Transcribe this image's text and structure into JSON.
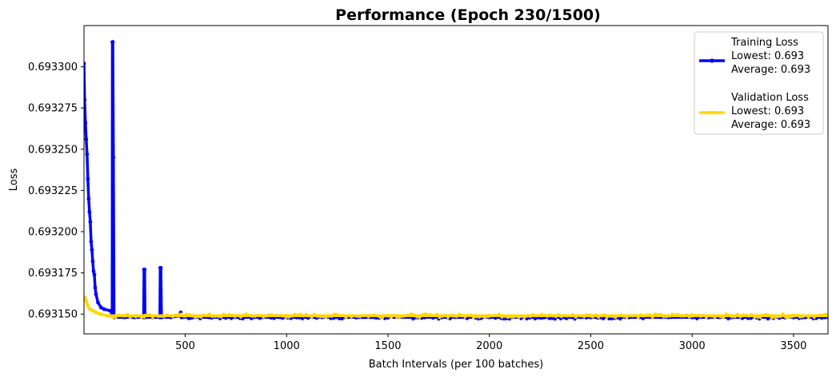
{
  "chart_data": {
    "type": "line",
    "title": "Performance (Epoch 230/1500)",
    "xlabel": "Batch Intervals (per 100 batches)",
    "ylabel": "Loss",
    "xlim": [
      1,
      3670
    ],
    "ylim": [
      0.693138,
      0.693325
    ],
    "xticks": [
      500,
      1000,
      1500,
      2000,
      2500,
      3000,
      3500
    ],
    "xtick_labels": [
      "500",
      "1000",
      "1500",
      "2000",
      "2500",
      "3000",
      "3500"
    ],
    "yticks": [
      0.69315,
      0.693175,
      0.6932,
      0.693225,
      0.69325,
      0.693275,
      0.6933
    ],
    "ytick_labels": [
      "0.693150",
      "0.693175",
      "0.693200",
      "0.693225",
      "0.693250",
      "0.693275",
      "0.693300"
    ],
    "grid": false,
    "legend_position": "top-right",
    "series": [
      {
        "name": "Training Loss",
        "color": "#0000ff",
        "legend_lines": [
          "Training Loss",
          "Lowest: 0.693",
          "Average: 0.693"
        ],
        "points": [
          [
            1,
            0.693302
          ],
          [
            4,
            0.69328
          ],
          [
            8,
            0.693266
          ],
          [
            12,
            0.693256
          ],
          [
            16,
            0.693247
          ],
          [
            20,
            0.693232
          ],
          [
            24,
            0.69322
          ],
          [
            28,
            0.693212
          ],
          [
            32,
            0.693206
          ],
          [
            36,
            0.693194
          ],
          [
            40,
            0.693189
          ],
          [
            44,
            0.693182
          ],
          [
            48,
            0.693176
          ],
          [
            52,
            0.693174
          ],
          [
            56,
            0.693166
          ],
          [
            60,
            0.693162
          ],
          [
            70,
            0.693157
          ],
          [
            85,
            0.693154
          ],
          [
            100,
            0.693153
          ],
          [
            130,
            0.693152
          ],
          [
            140,
            0.69315
          ],
          [
            141,
            0.693315
          ],
          [
            143,
            0.693315
          ],
          [
            146,
            0.693245
          ],
          [
            149,
            0.693148
          ],
          [
            200,
            0.693148
          ],
          [
            250,
            0.693148
          ],
          [
            295,
            0.693148
          ],
          [
            297,
            0.693177
          ],
          [
            300,
            0.693177
          ],
          [
            302,
            0.693148
          ],
          [
            340,
            0.693148
          ],
          [
            375,
            0.693148
          ],
          [
            377,
            0.693178
          ],
          [
            380,
            0.693178
          ],
          [
            383,
            0.693148
          ],
          [
            430,
            0.693148
          ],
          [
            475,
            0.693149
          ],
          [
            478,
            0.693151
          ],
          [
            482,
            0.693148
          ],
          [
            700,
            0.693148
          ],
          [
            1000,
            0.693148
          ],
          [
            1500,
            0.693148
          ],
          [
            2000,
            0.693148
          ],
          [
            2500,
            0.693148
          ],
          [
            3000,
            0.693148
          ],
          [
            3500,
            0.693148
          ],
          [
            3670,
            0.693148
          ]
        ]
      },
      {
        "name": "Validation Loss",
        "color": "#ffd700",
        "legend_lines": [
          "Validation Loss",
          "Lowest: 0.693",
          "Average: 0.693"
        ],
        "points": [
          [
            6,
            0.69316
          ],
          [
            12,
            0.693158
          ],
          [
            20,
            0.693155
          ],
          [
            30,
            0.693153
          ],
          [
            45,
            0.693152
          ],
          [
            60,
            0.693151
          ],
          [
            80,
            0.69315
          ],
          [
            120,
            0.693149
          ],
          [
            200,
            0.693149
          ],
          [
            300,
            0.693149
          ],
          [
            500,
            0.693149
          ],
          [
            1000,
            0.693149
          ],
          [
            1500,
            0.693149
          ],
          [
            2000,
            0.693149
          ],
          [
            2500,
            0.693149
          ],
          [
            3000,
            0.693149
          ],
          [
            3500,
            0.693149
          ],
          [
            3670,
            0.693149
          ]
        ]
      }
    ]
  }
}
